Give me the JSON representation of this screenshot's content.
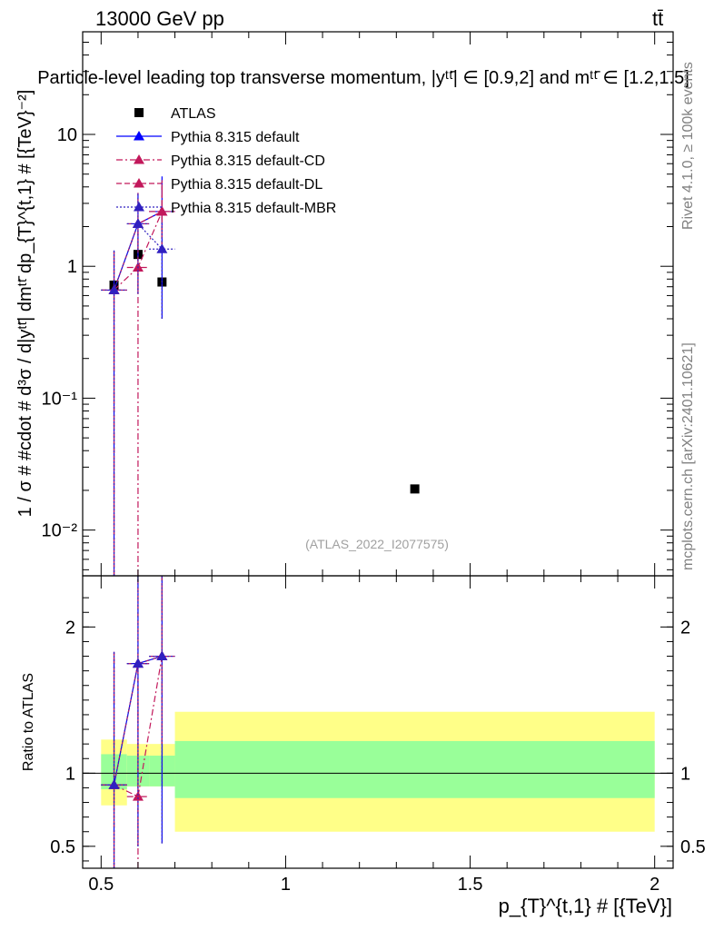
{
  "header": {
    "energy_label": "13000 GeV pp",
    "process_label": "tt̄"
  },
  "side_labels": {
    "rivet": "Rivet 4.1.0, ≥ 100k events",
    "mcplots": "mcplots.cern.ch [arXiv:2401.10621]"
  },
  "chart_data": [
    {
      "type": "scatter",
      "panel": "main",
      "title": "Particle-level leading top transverse momentum, |yᵗᵗ̄| ∈ [0.9,2] and mᵗᵗ̄ ∈ [1.2,1.5]",
      "ylabel": "1 / σ # #cdot # d³σ / d|yᵗᵗ̄| dmᵗᵗ̄ dp_{T}^{t,1} # [{TeV}⁻²]",
      "watermark": "(ATLAS_2022_I2077575)",
      "yscale": "log",
      "ylim": [
        0.0045,
        60
      ],
      "xlim": [
        0.45,
        2.05
      ],
      "y_ticks": [
        {
          "value": 0.01,
          "label": "10⁻²"
        },
        {
          "value": 0.1,
          "label": "10⁻¹"
        },
        {
          "value": 1,
          "label": "1"
        },
        {
          "value": 10,
          "label": "10"
        }
      ],
      "legend_position": "top-left",
      "series": [
        {
          "name": "ATLAS",
          "marker": "square",
          "color": "#000000",
          "points": [
            {
              "x": 0.535,
              "y": 0.72
            },
            {
              "x": 0.6,
              "y": 1.23
            },
            {
              "x": 0.665,
              "y": 0.76
            },
            {
              "x": 1.35,
              "y": 0.0205
            }
          ]
        },
        {
          "name": "Pythia 8.315 default",
          "marker": "triangle",
          "color": "#0000ff",
          "line": "solid",
          "points": [
            {
              "x": 0.535,
              "y": 0.66,
              "ylo": 0.0045,
              "yhi": 1.32,
              "xlo": 0.5,
              "xhi": 0.57
            },
            {
              "x": 0.6,
              "y": 2.1,
              "ylo": 0.62,
              "yhi": 3.6,
              "xlo": 0.57,
              "xhi": 0.63
            },
            {
              "x": 0.665,
              "y": 2.6,
              "ylo": 0.4,
              "yhi": 4.8,
              "xlo": 0.63,
              "xhi": 0.7
            }
          ]
        },
        {
          "name": "Pythia 8.315 default-CD",
          "marker": "triangle",
          "color": "#c2185b",
          "line": "dashdot",
          "points": [
            {
              "x": 0.535,
              "y": 0.66,
              "ylo": 0.0045,
              "yhi": 1.32,
              "xlo": 0.5,
              "xhi": 0.57
            },
            {
              "x": 0.6,
              "y": 0.98,
              "ylo": 0.0045,
              "yhi": 2.0,
              "xlo": 0.57,
              "xhi": 0.63
            },
            {
              "x": 0.665,
              "y": 2.6,
              "ylo": 1.4,
              "yhi": 4.5,
              "xlo": 0.63,
              "xhi": 0.7
            }
          ]
        },
        {
          "name": "Pythia 8.315 default-DL",
          "marker": "triangle",
          "color": "#c2185b",
          "line": "dashed",
          "points": [
            {
              "x": 0.535,
              "y": 0.66,
              "ylo": 0.0045,
              "yhi": 1.32,
              "xlo": 0.5,
              "xhi": 0.57
            },
            {
              "x": 0.6,
              "y": 2.1,
              "ylo": 0.62,
              "yhi": 3.6,
              "xlo": 0.57,
              "xhi": 0.63
            },
            {
              "x": 0.665,
              "y": 2.6,
              "ylo": 1.4,
              "yhi": 4.5,
              "xlo": 0.63,
              "xhi": 0.7
            }
          ]
        },
        {
          "name": "Pythia 8.315 default-MBR",
          "marker": "triangle",
          "color": "#3020c0",
          "line": "dotted",
          "points": [
            {
              "x": 0.535,
              "y": 0.66,
              "ylo": 0.0045,
              "yhi": 1.32,
              "xlo": 0.5,
              "xhi": 0.57
            },
            {
              "x": 0.6,
              "y": 2.1,
              "ylo": 0.62,
              "yhi": 3.6,
              "xlo": 0.57,
              "xhi": 0.63
            },
            {
              "x": 0.665,
              "y": 1.35,
              "ylo": 0.4,
              "yhi": 2.2,
              "xlo": 0.63,
              "xhi": 0.7
            }
          ]
        }
      ]
    },
    {
      "type": "scatter",
      "panel": "ratio",
      "ylabel": "Ratio to ATLAS",
      "xlabel": "p_{T}^{t,1} # [{TeV}]",
      "ylim": [
        0.35,
        2.35
      ],
      "xlim": [
        0.45,
        2.05
      ],
      "x_ticks": [
        {
          "value": 0.5,
          "label": "0.5"
        },
        {
          "value": 1,
          "label": "1"
        },
        {
          "value": 1.5,
          "label": "1.5"
        },
        {
          "value": 2,
          "label": "2"
        }
      ],
      "y_ticks": [
        {
          "value": 0.5,
          "label": "0.5"
        },
        {
          "value": 1,
          "label": "1"
        },
        {
          "value": 2,
          "label": "2"
        }
      ],
      "bands": [
        {
          "xlo": 0.5,
          "xhi": 0.57,
          "green": [
            0.89,
            1.13
          ],
          "yellow": [
            0.78,
            1.23
          ]
        },
        {
          "xlo": 0.57,
          "xhi": 0.63,
          "green": [
            0.91,
            1.12
          ],
          "yellow": [
            0.91,
            1.2
          ]
        },
        {
          "xlo": 0.63,
          "xhi": 0.7,
          "green": [
            0.91,
            1.12
          ],
          "yellow": [
            0.91,
            1.2
          ]
        },
        {
          "xlo": 0.7,
          "xhi": 2.0,
          "green": [
            0.83,
            1.22
          ],
          "yellow": [
            0.6,
            1.42
          ]
        }
      ],
      "series": [
        {
          "name": "Pythia 8.315 default",
          "color": "#0000ff",
          "line": "solid",
          "points": [
            {
              "x": 0.535,
              "y": 0.92,
              "ylo": 0.35,
              "yhi": 1.83,
              "xlo": 0.5,
              "xhi": 0.57
            },
            {
              "x": 0.6,
              "y": 1.75,
              "ylo": 0.5,
              "yhi": 2.35,
              "xlo": 0.57,
              "xhi": 0.63
            },
            {
              "x": 0.665,
              "y": 1.8,
              "ylo": 0.52,
              "yhi": 2.35,
              "xlo": 0.63,
              "xhi": 0.7
            }
          ]
        },
        {
          "name": "Pythia 8.315 default-CD",
          "color": "#c2185b",
          "line": "dashdot",
          "points": [
            {
              "x": 0.535,
              "y": 0.92,
              "ylo": 0.35,
              "yhi": 1.83,
              "xlo": 0.5,
              "xhi": 0.57
            },
            {
              "x": 0.6,
              "y": 0.84,
              "ylo": 0.35,
              "yhi": 1.65,
              "xlo": 0.57,
              "xhi": 0.63
            },
            {
              "x": 0.665,
              "y": 1.8,
              "ylo": 1.2,
              "yhi": 2.35,
              "xlo": 0.63,
              "xhi": 0.7
            }
          ]
        },
        {
          "name": "Pythia 8.315 default-DL",
          "color": "#c2185b",
          "line": "dashed",
          "points": [
            {
              "x": 0.535,
              "y": 0.92,
              "ylo": 0.35,
              "yhi": 1.83,
              "xlo": 0.5,
              "xhi": 0.57
            },
            {
              "x": 0.6,
              "y": 1.75,
              "ylo": 0.5,
              "yhi": 2.35,
              "xlo": 0.57,
              "xhi": 0.63
            },
            {
              "x": 0.665,
              "y": 1.8,
              "ylo": 1.2,
              "yhi": 2.35,
              "xlo": 0.63,
              "xhi": 0.7
            }
          ]
        },
        {
          "name": "Pythia 8.315 default-MBR",
          "color": "#3020c0",
          "line": "dotted",
          "points": [
            {
              "x": 0.535,
              "y": 0.92,
              "ylo": 0.35,
              "yhi": 1.83,
              "xlo": 0.5,
              "xhi": 0.57
            },
            {
              "x": 0.6,
              "y": 1.75,
              "ylo": 0.5,
              "yhi": 2.35,
              "xlo": 0.57,
              "xhi": 0.63
            },
            {
              "x": 0.665,
              "y": 1.8,
              "ylo": 0.52,
              "yhi": 2.35,
              "xlo": 0.63,
              "xhi": 0.7
            }
          ]
        }
      ]
    }
  ]
}
